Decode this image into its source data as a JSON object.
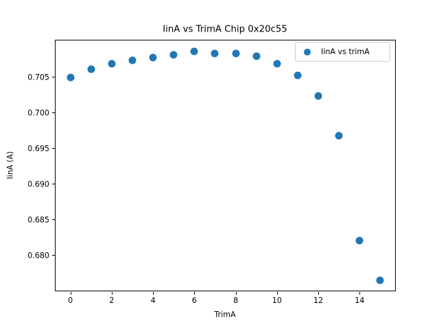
{
  "window": {
    "background": "#ffffff"
  },
  "chart_data": {
    "type": "scatter",
    "title": "IinA vs TrimA Chip 0x20c55",
    "xlabel": "TrimA",
    "ylabel": "IinA (A)",
    "legend": {
      "label": "IinA vs trimA",
      "position": "upper right",
      "marker": "dot-icon"
    },
    "marker_color": "#1f77b4",
    "grid": false,
    "x": [
      0,
      1,
      2,
      3,
      4,
      5,
      6,
      7,
      8,
      9,
      10,
      11,
      12,
      13,
      14,
      15
    ],
    "y": [
      0.7049,
      0.7061,
      0.7068,
      0.7073,
      0.7077,
      0.7081,
      0.7086,
      0.7083,
      0.7083,
      0.7079,
      0.7068,
      0.7052,
      0.7023,
      0.6967,
      0.682,
      0.6764
    ],
    "series": [
      {
        "name": "IinA vs trimA",
        "x": [
          0,
          1,
          2,
          3,
          4,
          5,
          6,
          7,
          8,
          9,
          10,
          11,
          12,
          13,
          14,
          15
        ],
        "values": [
          0.7049,
          0.7061,
          0.7068,
          0.7073,
          0.7077,
          0.7081,
          0.7086,
          0.7083,
          0.7083,
          0.7079,
          0.7068,
          0.7052,
          0.7023,
          0.6967,
          0.682,
          0.6764
        ]
      }
    ],
    "xlim": [
      -0.75,
      15.75
    ],
    "ylim": [
      0.6749,
      0.7102
    ],
    "xticks": {
      "values": [
        0,
        2,
        4,
        6,
        8,
        10,
        12,
        14
      ],
      "labels": [
        "0",
        "2",
        "4",
        "6",
        "8",
        "10",
        "12",
        "14"
      ]
    },
    "yticks": {
      "values": [
        0.68,
        0.685,
        0.69,
        0.695,
        0.7,
        0.705
      ],
      "labels": [
        "0.680",
        "0.685",
        "0.690",
        "0.695",
        "0.700",
        "0.705"
      ]
    }
  }
}
